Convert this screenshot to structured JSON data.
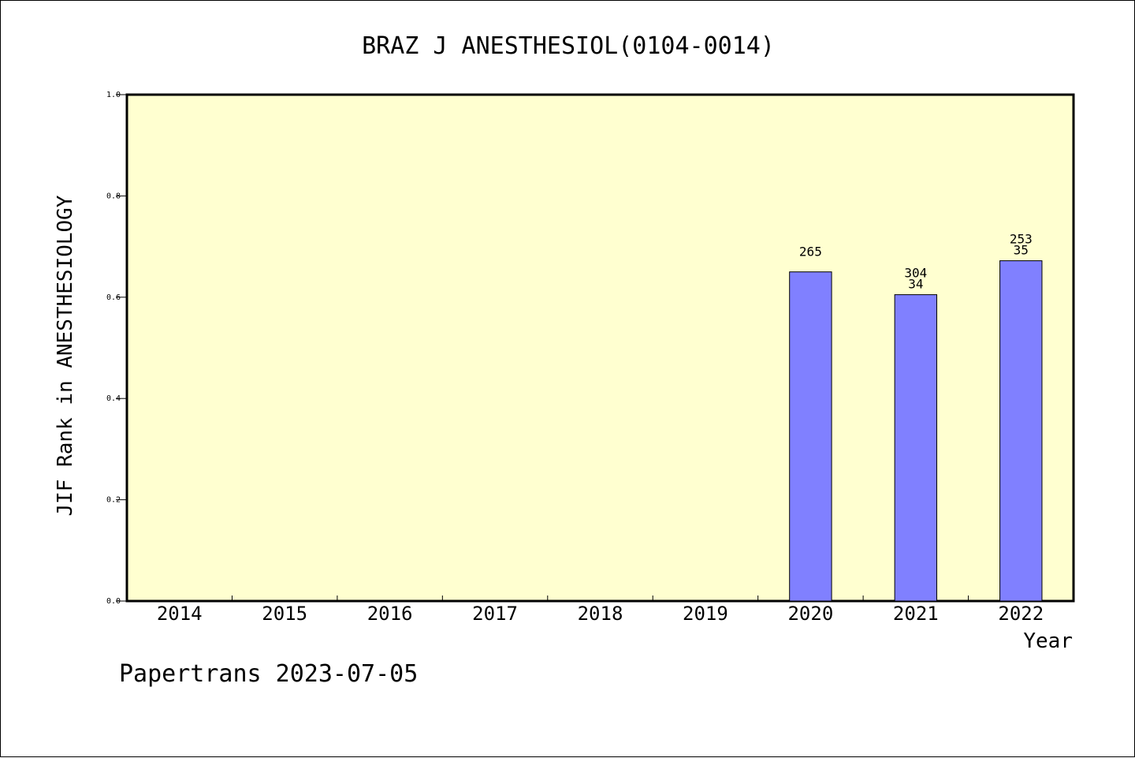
{
  "chart_data": {
    "type": "bar",
    "title": "BRAZ J ANESTHESIOL(0104-0014)",
    "xlabel": "Year",
    "ylabel": "JIF Rank in ANESTHESIOLOGY",
    "ylim": [
      0,
      1.0
    ],
    "yticks": [
      "0.0",
      "0.2",
      "0.4",
      "0.6",
      "0.8",
      "1.0"
    ],
    "categories": [
      "2014",
      "2015",
      "2016",
      "2017",
      "2018",
      "2019",
      "2020",
      "2021",
      "2022"
    ],
    "values": [
      null,
      null,
      null,
      null,
      null,
      null,
      0.65,
      0.605,
      0.672
    ],
    "bar_labels": [
      [],
      [],
      [],
      [],
      [],
      [],
      [
        "265"
      ],
      [
        "304",
        "34"
      ],
      [
        "253",
        "35"
      ]
    ],
    "grid": false,
    "legend": "none"
  },
  "footer": "Papertrans 2023-07-05",
  "colors": {
    "plot_background": "#ffffd0",
    "bar_fill": "#8080ff",
    "axis": "#000000"
  }
}
